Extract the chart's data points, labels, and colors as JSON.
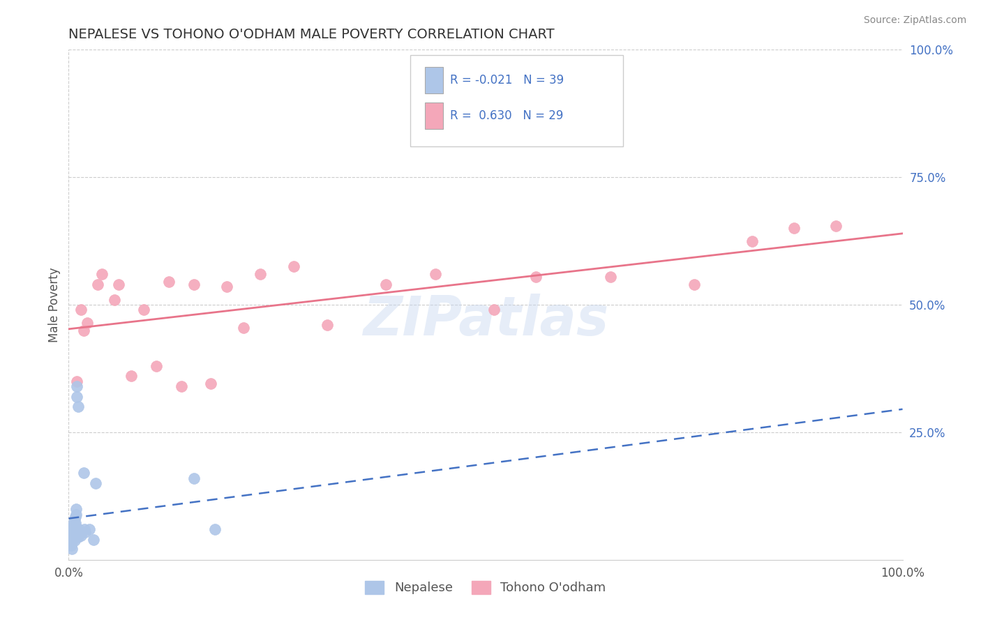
{
  "title": "NEPALESE VS TOHONO O'ODHAM MALE POVERTY CORRELATION CHART",
  "source": "Source: ZipAtlas.com",
  "ylabel": "Male Poverty",
  "xlim": [
    0.0,
    1.0
  ],
  "ylim": [
    0.0,
    1.0
  ],
  "watermark": "ZIPatlas",
  "nepalese_color": "#aec6e8",
  "tohono_color": "#f4a7b9",
  "nepalese_line_color": "#4472c4",
  "tohono_line_color": "#e8748a",
  "nepalese_x": [
    0.002,
    0.003,
    0.003,
    0.004,
    0.004,
    0.004,
    0.005,
    0.005,
    0.005,
    0.005,
    0.006,
    0.006,
    0.006,
    0.006,
    0.007,
    0.007,
    0.007,
    0.007,
    0.008,
    0.008,
    0.008,
    0.009,
    0.009,
    0.009,
    0.01,
    0.01,
    0.011,
    0.011,
    0.012,
    0.013,
    0.015,
    0.018,
    0.019,
    0.02,
    0.025,
    0.03,
    0.032,
    0.15,
    0.175
  ],
  "nepalese_y": [
    0.04,
    0.035,
    0.028,
    0.05,
    0.042,
    0.022,
    0.065,
    0.058,
    0.048,
    0.038,
    0.075,
    0.068,
    0.058,
    0.048,
    0.08,
    0.07,
    0.06,
    0.038,
    0.085,
    0.072,
    0.055,
    0.1,
    0.088,
    0.062,
    0.34,
    0.32,
    0.3,
    0.045,
    0.06,
    0.055,
    0.048,
    0.17,
    0.06,
    0.055,
    0.06,
    0.04,
    0.15,
    0.16,
    0.06
  ],
  "tohono_x": [
    0.01,
    0.015,
    0.018,
    0.022,
    0.035,
    0.04,
    0.055,
    0.06,
    0.075,
    0.09,
    0.105,
    0.12,
    0.135,
    0.15,
    0.17,
    0.19,
    0.21,
    0.23,
    0.27,
    0.31,
    0.38,
    0.44,
    0.51,
    0.56,
    0.65,
    0.75,
    0.82,
    0.87,
    0.92
  ],
  "tohono_y": [
    0.35,
    0.49,
    0.45,
    0.465,
    0.54,
    0.56,
    0.51,
    0.54,
    0.36,
    0.49,
    0.38,
    0.545,
    0.34,
    0.54,
    0.345,
    0.535,
    0.455,
    0.56,
    0.575,
    0.46,
    0.54,
    0.56,
    0.49,
    0.555,
    0.555,
    0.54,
    0.625,
    0.65,
    0.655
  ]
}
